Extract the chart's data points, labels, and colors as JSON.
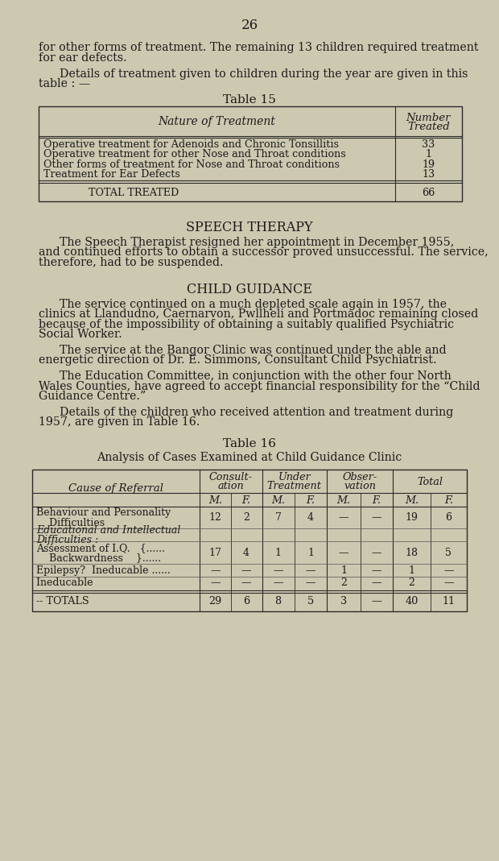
{
  "bg_color": "#cdc8b0",
  "text_color": "#1a1a1a",
  "page_number": "26",
  "intro_text_1": "for other forms of treatment. The remaining 13 children required treatment",
  "intro_text_1b": "for ear defects.",
  "intro_text_2": "Details of treatment given to children during the year are given in this",
  "intro_text_2b": "table : —",
  "table15_title": "Table 15",
  "table15_col1_header": "Nature of Treatment",
  "table15_col2_header_line1": "Number",
  "table15_col2_header_line2": "Treated",
  "table15_rows": [
    [
      "Operative treatment for Adenoids and Chronic Tonsillitis                                  ",
      "33"
    ],
    [
      "Operative treatment for other Nose and Throat conditions                            ",
      "1"
    ],
    [
      "Other forms of treatment for Nose and Throat conditions                             ",
      "19"
    ],
    [
      "Treatment for Ear Defects                                                                                            ",
      "13"
    ]
  ],
  "table15_total_label": "TOTAL TREATED",
  "table15_total_dots": "                                                              ",
  "table15_total_value": "66",
  "speech_therapy_heading": "SPEECH THERAPY",
  "speech_therapy_para": "The Speech Therapist resigned her appointment in December 1955,\nand continued efforts to obtain a successor proved unsuccessful. The service,\ntherefore, had to be suspended.",
  "child_guidance_heading": "CHILD GUIDANCE",
  "cg_para1": "The service continued on a much depleted scale again in 1957, the\nclinics at Llandudno, Caernarvon, Pwllheli and Portmadoc remaining closed\nbecause of the impossibility of obtaining a suitably qualified Psychiatric\nSocial Worker.",
  "cg_para2": "The service at the Bangor Clinic was continued under the able and\nenergetic direction of Dr. E. Simmons, Consultant Child Psychiatrist.",
  "cg_para3": "The Education Committee, in conjunction with the other four North\nWales Counties, have agreed to accept financial responsibility for the “Child\nGuidance Centre.”",
  "cg_para4": "Details of the children who received attention and treatment during\n1957, are given in Table 16.",
  "table16_title": "Table 16",
  "table16_subtitle": "Analysis of Cases Examined at Child Guidance Clinic",
  "table16_col_headers": [
    "Consult-\nation",
    "Under\nTreatment",
    "Obser-\nvation",
    "Total"
  ],
  "table16_sub_headers": [
    "M.",
    "F.",
    "M.",
    "F.",
    "M.",
    "F.",
    "M.",
    "F."
  ],
  "table16_row1_label1": "Behaviour and Personality",
  "table16_row1_label2": "    Difficulties                    ",
  "table16_row1_vals": [
    "12",
    "2",
    "7",
    "4",
    "—",
    "—",
    "19",
    "6"
  ],
  "table16_row2_label1": "Educational and Intellectual",
  "table16_row2_label2": "Difficulties :",
  "table16_row2_vals": [
    "",
    "",
    "",
    "",
    "",
    "",
    "",
    ""
  ],
  "table16_row3_label1": "Assessment of I.Q.   {......",
  "table16_row3_label2": "    Backwardness    }......",
  "table16_row3_vals": [
    "17",
    "4",
    "1",
    "1",
    "—",
    "—",
    "18",
    "5"
  ],
  "table16_row4_label": "Epilepsy?  Ineducable ......",
  "table16_row4_vals": [
    "—",
    "—",
    "—",
    "—",
    "1",
    "—",
    "1",
    "—"
  ],
  "table16_row5_label": "Ineducable                                    ",
  "table16_row5_vals": [
    "—",
    "—",
    "—",
    "—",
    "2",
    "—",
    "2",
    "—"
  ],
  "table16_totals_label": "-- TOTALS                ",
  "table16_totals": [
    "29",
    "6",
    "8",
    "5",
    "3",
    "—",
    "40",
    "11"
  ]
}
